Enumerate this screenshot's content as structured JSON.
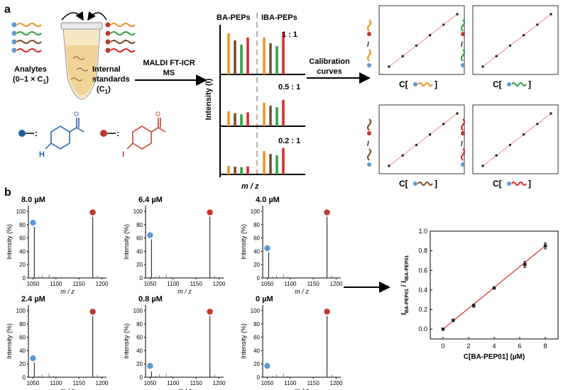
{
  "panel_a": {
    "label": "a",
    "analytes_label": [
      "Analytes",
      "(0–1 × C",
      "1",
      ")"
    ],
    "internal_label": [
      "Internal",
      "standards",
      "(C",
      "1",
      ")"
    ],
    "method_label": [
      "MALDI FT-ICR",
      "MS"
    ],
    "spectra_header_left": "BA-PEPs",
    "spectra_header_right": "IBA-PEPs",
    "ratios": [
      "1 : 1",
      "0.5 : 1",
      "0.2 : 1"
    ],
    "y_axis": "Intensity (I)",
    "x_axis": "m / z",
    "calibration_label": [
      "Calibration",
      "curves"
    ],
    "calib_xlabel_prefix": "C[",
    "calib_xlabel_suffix": "]",
    "calib_ylabel": "I / I",
    "wave_colors": [
      "#e8932a",
      "#2ea043",
      "#7a4a21",
      "#d62728"
    ],
    "tube_colors": [
      "#e8932a",
      "#2ea043",
      "#7a4a21",
      "#d62728"
    ],
    "legend_h": "H",
    "legend_i": "I",
    "bar_colors": {
      "orange": "#e8932a",
      "green": "#2ea043",
      "brown": "#7a4a21",
      "red": "#d62728"
    }
  },
  "panel_b": {
    "label": "b",
    "panels": [
      {
        "conc": "8.0 µM",
        "blue": 0.9,
        "red": 1.0
      },
      {
        "conc": "6.4 µM",
        "blue": 0.68,
        "red": 1.0
      },
      {
        "conc": "4.0 µM",
        "blue": 0.45,
        "red": 1.0
      },
      {
        "conc": "2.4 µM",
        "blue": 0.26,
        "red": 1.0
      },
      {
        "conc": "0.8 µM",
        "blue": 0.1,
        "red": 1.0
      },
      {
        "conc": "0 µM",
        "blue": 0.0,
        "red": 1.0
      }
    ],
    "yticks": [
      "0",
      "20",
      "40",
      "60",
      "80",
      "100"
    ],
    "xticks": [
      "1050",
      "1100",
      "1150",
      "1200"
    ],
    "ylabel": "Intensity (%)",
    "xlabel": "m / z",
    "colors": {
      "blue": "#5b9bd5",
      "red": "#c0392b"
    }
  },
  "chart_data": {
    "type": "scatter",
    "x": [
      0,
      0.8,
      2.4,
      4.0,
      6.4,
      8.0
    ],
    "y": [
      0.0,
      0.09,
      0.24,
      0.42,
      0.66,
      0.85
    ],
    "yerr": [
      0.005,
      0.01,
      0.015,
      0.012,
      0.03,
      0.03
    ],
    "xlim": [
      -1,
      9
    ],
    "ylim": [
      -0.1,
      1.0
    ],
    "xticks": [
      0,
      2,
      4,
      6,
      8
    ],
    "yticks": [
      0.0,
      0.2,
      0.4,
      0.6,
      0.8,
      1.0
    ],
    "xlabel": "C[BA-PEP01] (µM)",
    "ylabel_main": "I",
    "ylabel_sub1": "BA-PEP01",
    "ylabel_mid": " / I",
    "ylabel_sub2": "IBA-PEP01",
    "fit": [
      0,
      0.0,
      8,
      0.85
    ],
    "line_color": "#e03030"
  }
}
